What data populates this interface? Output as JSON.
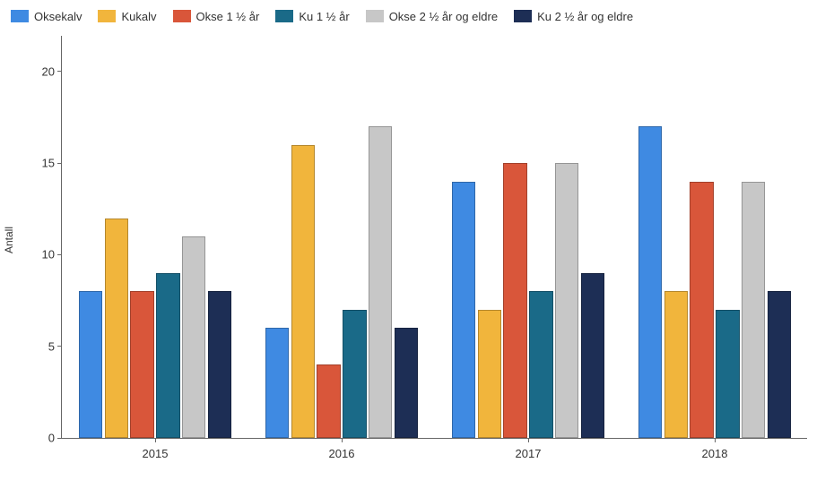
{
  "chart": {
    "type": "bar",
    "background_color": "#ffffff",
    "axis_color": "#666666",
    "label_color": "#333333",
    "label_fontsize": 13,
    "ylabel": "Antall",
    "ylabel_fontsize": 12,
    "ylim": [
      0,
      22
    ],
    "yticks": [
      0,
      5,
      10,
      15,
      20
    ],
    "categories": [
      "2015",
      "2016",
      "2017",
      "2018"
    ],
    "bar_group_width": 0.82,
    "bar_gap": 0.012,
    "series": [
      {
        "name": "Oksekalv",
        "color": "#3f8ae2",
        "values": [
          8,
          6,
          14,
          17
        ]
      },
      {
        "name": "Kukalv",
        "color": "#f1b53c",
        "values": [
          12,
          16,
          7,
          8
        ]
      },
      {
        "name": "Okse 1 ½ år",
        "color": "#d9563a",
        "values": [
          8,
          4,
          15,
          14
        ]
      },
      {
        "name": "Ku 1 ½ år",
        "color": "#1a6a88",
        "values": [
          9,
          7,
          8,
          7
        ]
      },
      {
        "name": "Okse 2 ½ år og eldre",
        "color": "#c7c7c7",
        "values": [
          11,
          17,
          15,
          14
        ]
      },
      {
        "name": "Ku 2 ½ år og eldre",
        "color": "#1d2e55",
        "values": [
          8,
          6,
          9,
          8
        ]
      }
    ]
  }
}
